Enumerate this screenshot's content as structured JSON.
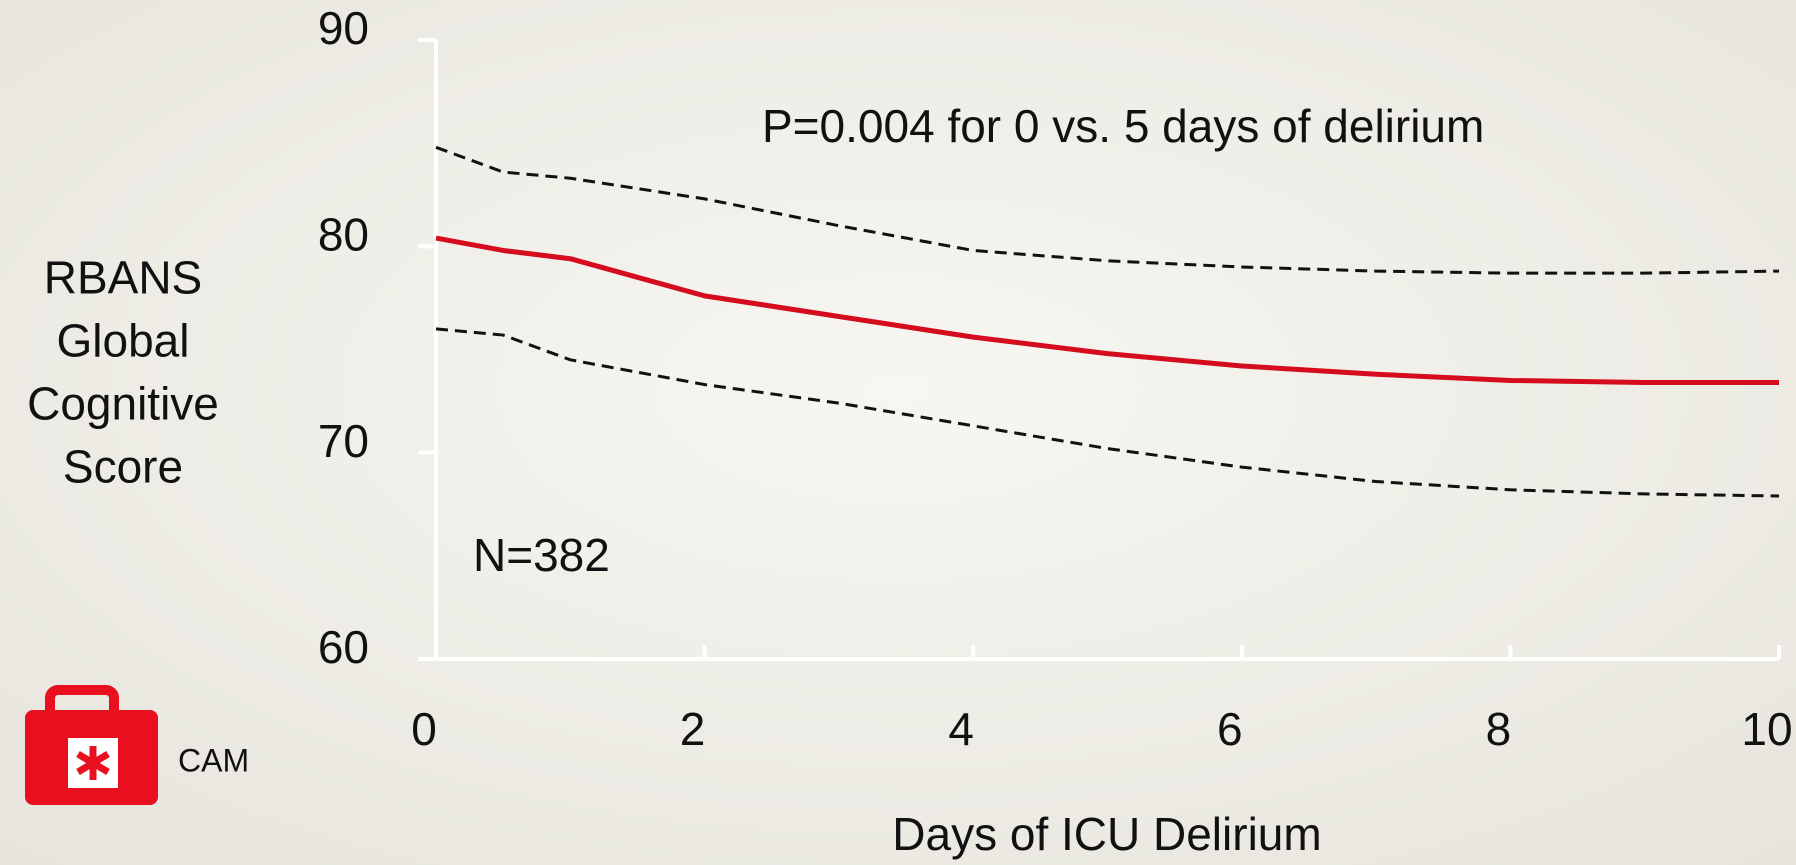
{
  "chart_data": {
    "type": "line",
    "xlabel": "Days of ICU Delirium",
    "ylabel": "RBANS Global Cognitive Score",
    "annotations": [
      "P=0.004 for 0 vs. 5 days of delirium",
      "N=382"
    ],
    "logo_text": "CAM",
    "x": [
      0,
      0.5,
      1,
      2,
      3,
      4,
      5,
      6,
      7,
      8,
      9,
      10
    ],
    "series": [
      {
        "color": "#d50b1e",
        "linestyle": "solid",
        "values": [
          80.4,
          79.8,
          79.4,
          77.6,
          76.6,
          75.6,
          74.8,
          74.2,
          73.8,
          73.5,
          73.4,
          73.4
        ]
      },
      {
        "color": "#111111",
        "linestyle": "dashed",
        "values": [
          84.8,
          83.6,
          83.3,
          82.3,
          81.0,
          79.8,
          79.3,
          79.0,
          78.8,
          78.7,
          78.7,
          78.8
        ]
      },
      {
        "color": "#111111",
        "linestyle": "dashed",
        "values": [
          76.0,
          75.7,
          74.5,
          73.3,
          72.4,
          71.3,
          70.2,
          69.3,
          68.6,
          68.2,
          68.0,
          67.9
        ]
      }
    ],
    "xlim": [
      0,
      10
    ],
    "xticks": [
      0,
      2,
      4,
      6,
      8,
      10
    ],
    "ylim": [
      60,
      90
    ],
    "yticks": [
      60,
      70,
      80,
      90
    ]
  }
}
